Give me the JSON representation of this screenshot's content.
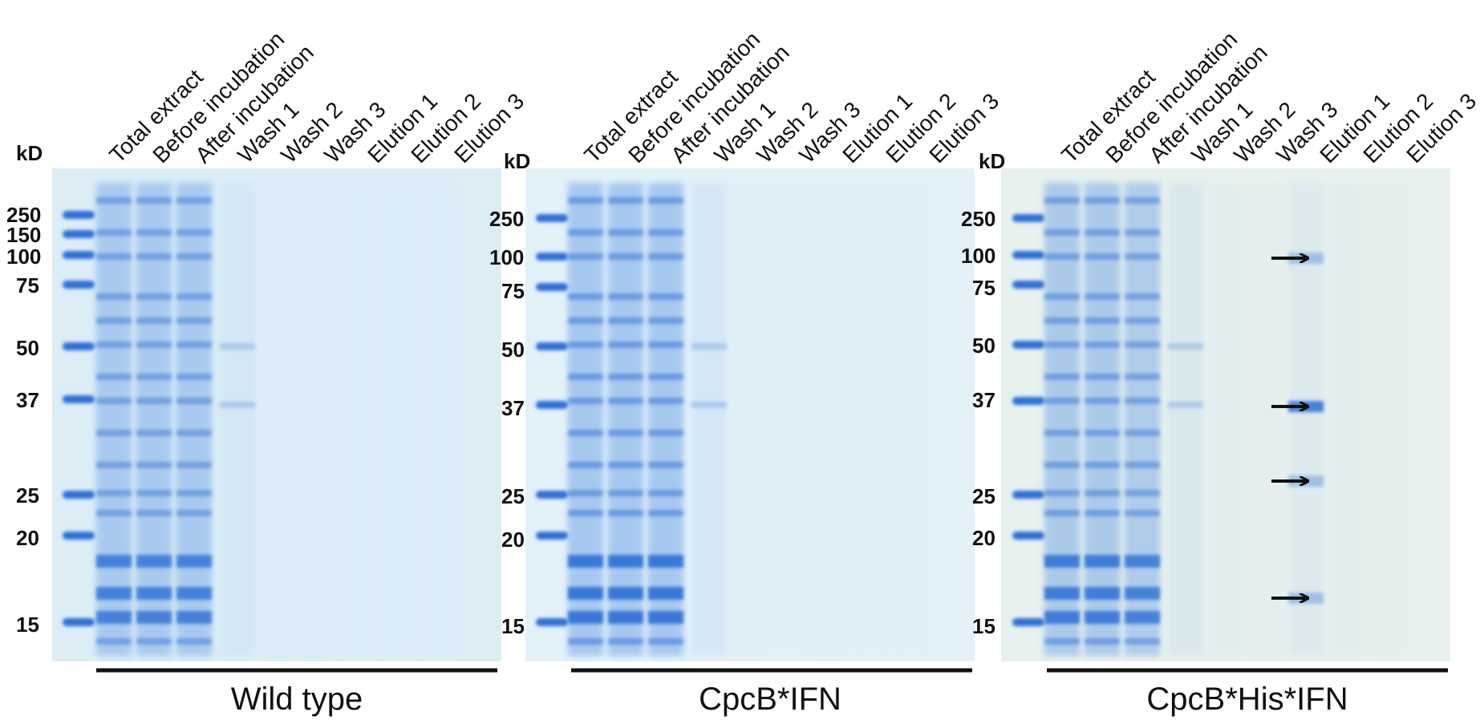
{
  "kd_unit": "kD",
  "lane_labels": [
    "Total extract",
    "Before incubation",
    "After incubation",
    "Wash 1",
    "Wash 2",
    "Wash 3",
    "Elution 1",
    "Elution 2",
    "Elution 3"
  ],
  "panels": [
    {
      "caption": "Wild type",
      "markers": [
        "250",
        "150",
        "100",
        "75",
        "50",
        "37",
        "25",
        "20",
        "15"
      ],
      "background": "#dcedf6",
      "arrows": 0
    },
    {
      "caption": "CpcB*IFN",
      "markers": [
        "250",
        "100",
        "75",
        "50",
        "37",
        "25",
        "20",
        "15"
      ],
      "background": "#e3f1f9",
      "arrows": 0
    },
    {
      "caption": "CpcB*His*IFN",
      "markers": [
        "250",
        "100",
        "75",
        "50",
        "37",
        "25",
        "20",
        "15"
      ],
      "background": "#e7f1ee",
      "arrows": 4
    }
  ],
  "colors": {
    "stain": "#2f6fd6",
    "stain_light": "#6fa3e6",
    "text": "#111111"
  }
}
